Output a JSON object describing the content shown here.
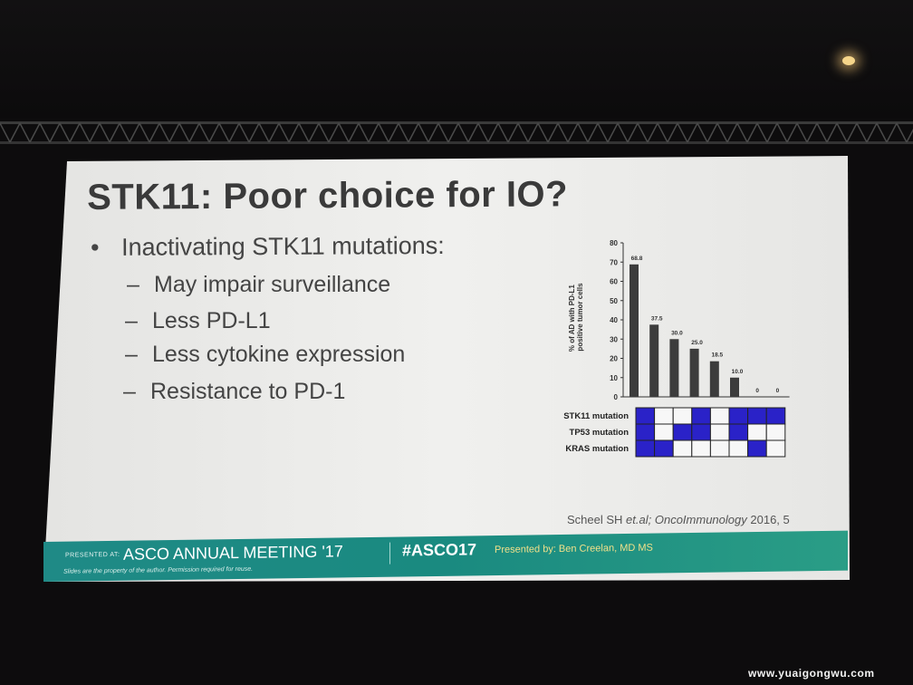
{
  "slide": {
    "title": "STK11: Poor choice for IO?",
    "main_bullet": "Inactivating STK11 mutations:",
    "sub_bullets": [
      "May impair surveillance",
      "Less PD-L1",
      "Less cytokine expression",
      "Resistance to PD-1"
    ],
    "citation_author": "Scheel SH ",
    "citation_etal": "et.al;",
    "citation_journal": "OncoImmunology",
    "citation_year": "2016, 5"
  },
  "chart_data": {
    "type": "bar",
    "ylabel_line1": "% of AD with PD-L1",
    "ylabel_line2": "positive tumor cells",
    "ylim": [
      0,
      80
    ],
    "yticks": [
      "0",
      "10",
      "20",
      "30",
      "40",
      "50",
      "60",
      "70",
      "80"
    ],
    "values": [
      68.8,
      37.5,
      30.0,
      25.0,
      18.5,
      10.0,
      0,
      0
    ],
    "value_labels": [
      "68.8",
      "37.5",
      "30.0",
      "25.0",
      "18.5",
      "10.0",
      "0",
      "0"
    ],
    "bar_color": "#3c3c3c",
    "grid": false,
    "mutation_rows": [
      {
        "label": "STK11 mutation",
        "cells": [
          1,
          0,
          0,
          1,
          0,
          1,
          1,
          1
        ]
      },
      {
        "label": "TP53   mutation",
        "cells": [
          1,
          0,
          1,
          1,
          0,
          1,
          0,
          0
        ]
      },
      {
        "label": "KRAS  mutation",
        "cells": [
          1,
          1,
          0,
          0,
          0,
          0,
          1,
          0
        ]
      }
    ],
    "filled_color": "#2a22c8"
  },
  "footer": {
    "presented_at": "PRESENTED AT:",
    "meeting": "ASCO ANNUAL MEETING '17",
    "hashtag": "#ASCO17",
    "presenter": "Presented by: Ben Creelan, MD MS",
    "disclaimer": "Slides are the property of the author. Permission required for reuse.",
    "accent": "#1f8a86"
  },
  "watermark": "www.yuaigongwu.com"
}
